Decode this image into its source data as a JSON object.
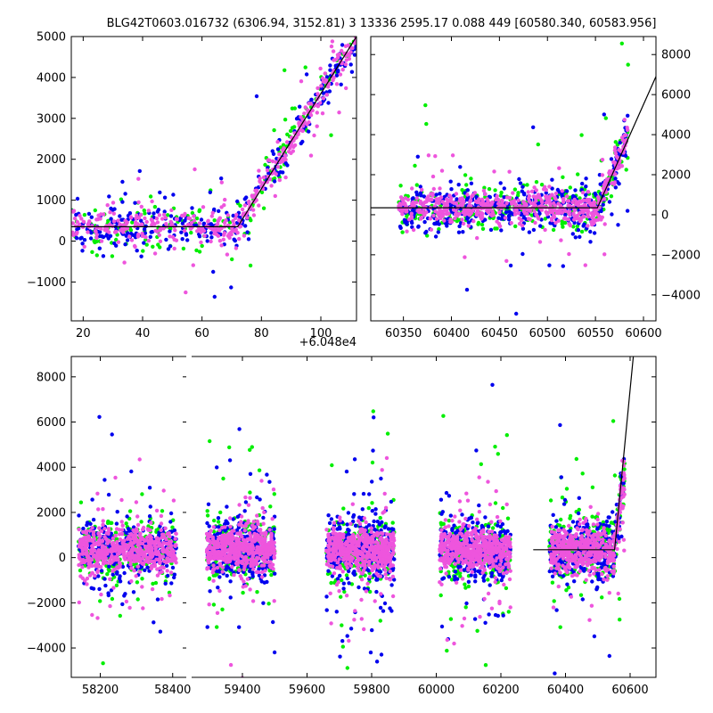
{
  "title": "BLG42T0603.016732 (6306.94, 3152.81)  3 13336 2595.17 0.088 449 [60580.340, 60583.956]",
  "colors": {
    "green": "#00ee00",
    "blue": "#0000ee",
    "magenta": "#ee55dd",
    "line": "#000000"
  },
  "chart_data": [
    {
      "type": "scatter",
      "panel": "zoom",
      "xlim": [
        60496,
        60592
      ],
      "ylim": [
        -1950,
        5000
      ],
      "offset_label": "+6.048e4",
      "xticks": [
        {
          "v": 60500,
          "label": "20"
        },
        {
          "v": 60520,
          "label": "40"
        },
        {
          "v": 60540,
          "label": "60"
        },
        {
          "v": 60560,
          "label": "80"
        },
        {
          "v": 60580,
          "label": "100"
        }
      ],
      "yticks": [
        {
          "v": -1000,
          "label": "−1000"
        },
        {
          "v": 0,
          "label": "0"
        },
        {
          "v": 1000,
          "label": "1000"
        },
        {
          "v": 2000,
          "label": "2000"
        },
        {
          "v": 3000,
          "label": "3000"
        },
        {
          "v": 4000,
          "label": "4000"
        },
        {
          "v": 5000,
          "label": "5000"
        }
      ],
      "yaxis_side": "left",
      "model_line": [
        [
          60496,
          350
        ],
        [
          60552,
          350
        ],
        [
          60592,
          5000
        ]
      ]
    },
    {
      "type": "scatter",
      "panel": "season",
      "xlim": [
        60316,
        60613
      ],
      "ylim": [
        -5300,
        8900
      ],
      "xticks": [
        {
          "v": 60350,
          "label": "60350"
        },
        {
          "v": 60400,
          "label": "60400"
        },
        {
          "v": 60450,
          "label": "60450"
        },
        {
          "v": 60500,
          "label": "60500"
        },
        {
          "v": 60550,
          "label": "60550"
        },
        {
          "v": 60600,
          "label": "60600"
        }
      ],
      "yticks": [
        {
          "v": -4000,
          "label": "−4000"
        },
        {
          "v": -2000,
          "label": "−2000"
        },
        {
          "v": 0,
          "label": "0"
        },
        {
          "v": 2000,
          "label": "2000"
        },
        {
          "v": 4000,
          "label": "4000"
        },
        {
          "v": 6000,
          "label": "6000"
        },
        {
          "v": 8000,
          "label": "8000"
        }
      ],
      "yaxis_side": "right",
      "model_line": [
        [
          60316,
          350
        ],
        [
          60552,
          350
        ],
        [
          60613,
          6900
        ]
      ]
    },
    {
      "type": "scatter",
      "panel": "all-seasons",
      "ylim": [
        -5300,
        8900
      ],
      "segments": [
        {
          "xlim": [
            58120,
            58440
          ],
          "xticks": [
            {
              "v": 58200,
              "label": "58200"
            },
            {
              "v": 58400,
              "label": "58400"
            }
          ]
        },
        {
          "xlim": [
            59240,
            60680
          ],
          "xticks": [
            {
              "v": 59400,
              "label": "59400"
            },
            {
              "v": 59600,
              "label": "59600"
            },
            {
              "v": 59800,
              "label": "59800"
            },
            {
              "v": 60000,
              "label": "60000"
            },
            {
              "v": 60200,
              "label": "60200"
            },
            {
              "v": 60400,
              "label": "60400"
            },
            {
              "v": 60600,
              "label": "60600"
            }
          ]
        }
      ],
      "yticks": [
        {
          "v": -4000,
          "label": "−4000"
        },
        {
          "v": -2000,
          "label": "−2000"
        },
        {
          "v": 0,
          "label": "0"
        },
        {
          "v": 2000,
          "label": "2000"
        },
        {
          "v": 4000,
          "label": "4000"
        },
        {
          "v": 6000,
          "label": "6000"
        },
        {
          "v": 8000,
          "label": "8000"
        }
      ],
      "yaxis_side": "left",
      "seasons": [
        [
          58140,
          58410
        ],
        [
          59290,
          59500
        ],
        [
          59660,
          59870
        ],
        [
          60010,
          60230
        ],
        [
          60350,
          60583
        ]
      ],
      "model_line": [
        [
          60300,
          350
        ],
        [
          60552,
          350
        ],
        [
          60610,
          8900
        ]
      ]
    }
  ]
}
